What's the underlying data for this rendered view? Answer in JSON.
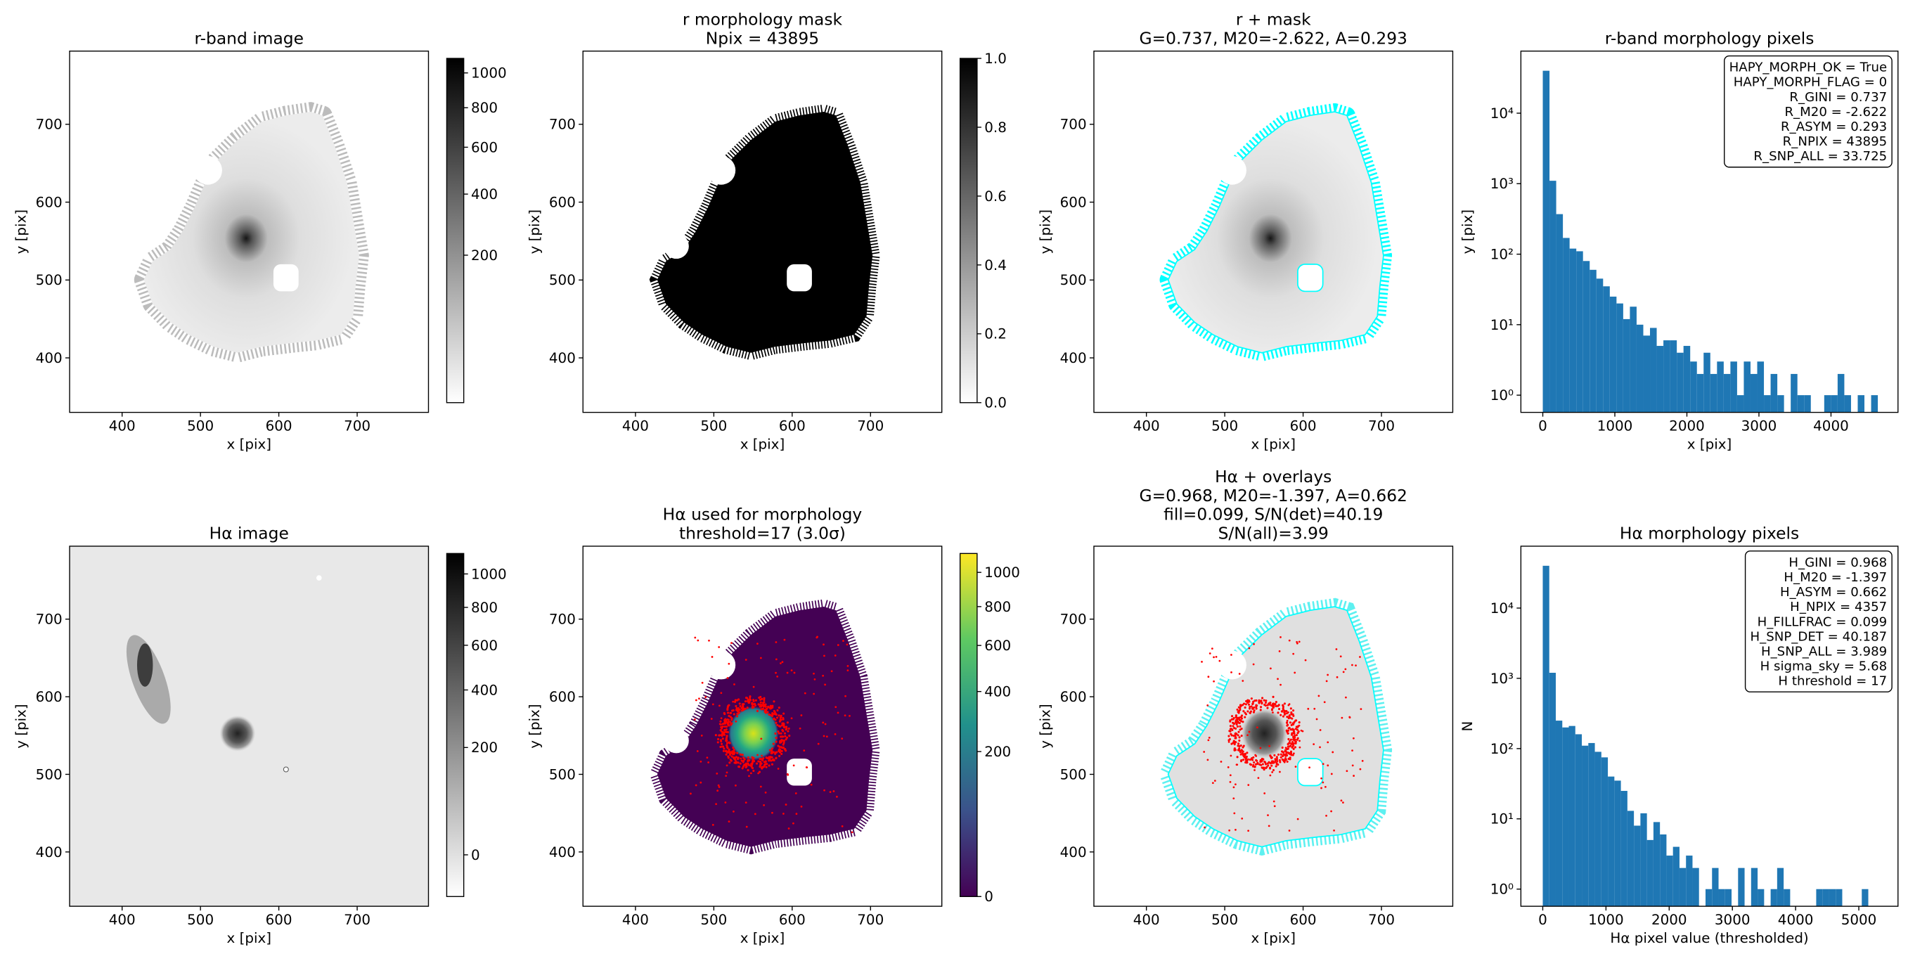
{
  "chart_data": [
    {
      "type": "image",
      "title": [
        "r-band image"
      ],
      "xlabel": "x [pix]",
      "ylabel": "y [pix]",
      "xlim": [
        333,
        791
      ],
      "ylim": [
        330,
        794
      ],
      "xticks": [
        400,
        500,
        600,
        700
      ],
      "yticks": [
        400,
        500,
        600,
        700
      ],
      "colorbar": {
        "colormap": "gray_r",
        "scale": "sqrt",
        "lim": [
          0,
          1090
        ],
        "ticks": [
          200,
          400,
          600,
          800,
          1000
        ]
      }
    },
    {
      "type": "image",
      "title": [
        "r morphology mask",
        "Npix = 43895"
      ],
      "xlabel": "x [pix]",
      "ylabel": "y [pix]",
      "xlim": [
        333,
        791
      ],
      "ylim": [
        330,
        794
      ],
      "xticks": [
        400,
        500,
        600,
        700
      ],
      "yticks": [
        400,
        500,
        600,
        700
      ],
      "colorbar": {
        "colormap": "gray_r",
        "scale": "linear",
        "lim": [
          0,
          1
        ],
        "ticks": [
          {
            "value": 0,
            "label": "0.0"
          },
          {
            "value": 0.2,
            "label": "0.2"
          },
          {
            "value": 0.4,
            "label": "0.4"
          },
          {
            "value": 0.6,
            "label": "0.6"
          },
          {
            "value": 0.8,
            "label": "0.8"
          },
          {
            "value": 1,
            "label": "1.0"
          }
        ]
      }
    },
    {
      "type": "image",
      "title": [
        "r + mask",
        "G=0.737, M20=-2.622, A=0.293"
      ],
      "xlabel": "x [pix]",
      "ylabel": "y [pix]",
      "xlim": [
        333,
        791
      ],
      "ylim": [
        330,
        794
      ],
      "xticks": [
        400,
        500,
        600,
        700
      ],
      "yticks": [
        400,
        500,
        600,
        700
      ]
    },
    {
      "type": "histogram",
      "title": [
        "r-band morphology pixels"
      ],
      "xlabel": "x [pix]",
      "ylabel": "y [pix]",
      "color": "#1f77b4",
      "bins": [
        0,
        93,
        186,
        279,
        372,
        465,
        558,
        651,
        744,
        837,
        930,
        1023,
        1116,
        1209,
        1302,
        1395,
        1488,
        1581,
        1674,
        1767,
        1860,
        1953,
        2046,
        2139,
        2232,
        2325,
        2418,
        2511,
        2604,
        2697,
        2790,
        2883,
        2976,
        3069,
        3162,
        3255,
        3348,
        3441,
        3534,
        3627,
        3720,
        3813,
        3906,
        3999,
        4092,
        4185,
        4278,
        4371,
        4464,
        4557,
        4650
      ],
      "counts": [
        40000,
        1100,
        370,
        170,
        120,
        110,
        80,
        60,
        45,
        35,
        25,
        20,
        12,
        18,
        10,
        7,
        9,
        5,
        6,
        6,
        4,
        5,
        3,
        2,
        4,
        2,
        3,
        2,
        3,
        1,
        3,
        2,
        3,
        1,
        2,
        1,
        0,
        2,
        1,
        1,
        0,
        0,
        1,
        1,
        2,
        1,
        0,
        1,
        0,
        1
      ],
      "xlim": [
        -304,
        4930
      ],
      "xticks": [
        0,
        1000,
        2000,
        3000,
        4000
      ],
      "ylog": true,
      "ylim": [
        0.57,
        76000
      ],
      "yticks": [
        {
          "value": 1,
          "label": "10⁰"
        },
        {
          "value": 10,
          "label": "10¹"
        },
        {
          "value": 100,
          "label": "10²"
        },
        {
          "value": 1000,
          "label": "10³"
        },
        {
          "value": 10000,
          "label": "10⁴"
        }
      ],
      "annotation_corner": "upper right",
      "annotation": [
        "HAPY_MORPH_OK = True",
        "HAPY_MORPH_FLAG = 0",
        "R_GINI = 0.737",
        "R_M20 = -2.622",
        "R_ASYM = 0.293",
        "R_NPIX = 43895",
        "R_SNP_ALL = 33.725"
      ]
    },
    {
      "type": "image",
      "title": [
        "Hα image"
      ],
      "xlabel": "x [pix]",
      "ylabel": "y [pix]",
      "xlim": [
        333,
        791
      ],
      "ylim": [
        330,
        794
      ],
      "xticks": [
        400,
        500,
        600,
        700
      ],
      "yticks": [
        400,
        500,
        600,
        700
      ],
      "colorbar": {
        "colormap": "gray_r",
        "scale": "sqrt",
        "lim": [
          -17,
          1133
        ],
        "ticks": [
          0,
          200,
          400,
          600,
          800,
          1000
        ]
      }
    },
    {
      "type": "image",
      "title": [
        "Hα used for morphology",
        "threshold=17 (3.0σ)"
      ],
      "xlabel": "x [pix]",
      "ylabel": "y [pix]",
      "xlim": [
        333,
        791
      ],
      "ylim": [
        330,
        794
      ],
      "xticks": [
        400,
        500,
        600,
        700
      ],
      "yticks": [
        400,
        500,
        600,
        700
      ],
      "colorbar": {
        "colormap": "viridis",
        "scale": "sqrt",
        "lim": [
          0,
          1120
        ],
        "ticks": [
          0,
          200,
          400,
          600,
          800,
          1000
        ]
      }
    },
    {
      "type": "image",
      "title": [
        "Hα + overlays",
        "G=0.968, M20=-1.397, A=0.662",
        "fill=0.099, S/N(det)=40.19",
        "S/N(all)=3.99"
      ],
      "xlabel": "x [pix]",
      "ylabel": "y [pix]",
      "xlim": [
        333,
        791
      ],
      "ylim": [
        330,
        794
      ],
      "xticks": [
        400,
        500,
        600,
        700
      ],
      "yticks": [
        400,
        500,
        600,
        700
      ]
    },
    {
      "type": "histogram",
      "title": [
        "Hα morphology pixels"
      ],
      "xlabel": "Hα pixel value (thresholded)",
      "ylabel": "N",
      "color": "#1f77b4",
      "bins": [
        0,
        103,
        206,
        309,
        412,
        515,
        618,
        721,
        824,
        927,
        1030,
        1133,
        1236,
        1339,
        1442,
        1545,
        1648,
        1751,
        1854,
        1957,
        2060,
        2163,
        2266,
        2369,
        2472,
        2575,
        2678,
        2781,
        2884,
        2987,
        3090,
        3193,
        3296,
        3399,
        3502,
        3605,
        3708,
        3811,
        3914,
        4017,
        4120,
        4223,
        4326,
        4429,
        4532,
        4635,
        4738,
        4841,
        4944,
        5047,
        5150
      ],
      "counts": [
        40000,
        1200,
        250,
        200,
        210,
        160,
        110,
        120,
        90,
        75,
        40,
        35,
        25,
        13,
        8,
        12,
        5,
        9,
        6,
        3,
        4,
        2,
        3,
        2,
        0,
        1,
        2,
        1,
        1,
        0,
        2,
        0,
        2,
        1,
        0,
        1,
        2,
        1,
        0,
        0,
        0,
        0,
        1,
        1,
        1,
        1,
        0,
        0,
        0,
        1
      ],
      "xlim": [
        -346,
        5620
      ],
      "xticks": [
        0,
        1000,
        2000,
        3000,
        4000,
        5000
      ],
      "ylog": true,
      "ylim": [
        0.57,
        76000
      ],
      "yticks": [
        {
          "value": 1,
          "label": "10⁰"
        },
        {
          "value": 10,
          "label": "10¹"
        },
        {
          "value": 100,
          "label": "10²"
        },
        {
          "value": 1000,
          "label": "10³"
        },
        {
          "value": 10000,
          "label": "10⁴"
        }
      ],
      "annotation_corner": "upper right",
      "annotation": [
        "H_GINI = 0.968",
        "H_M20 = -1.397",
        "H_ASYM = 0.662",
        "H_NPIX = 4357",
        "H_FILLFRAC = 0.099",
        "H_SNP_DET = 40.187",
        "H_SNP_ALL = 3.989",
        "H sigma_sky = 5.68",
        "H threshold = 17"
      ]
    }
  ]
}
